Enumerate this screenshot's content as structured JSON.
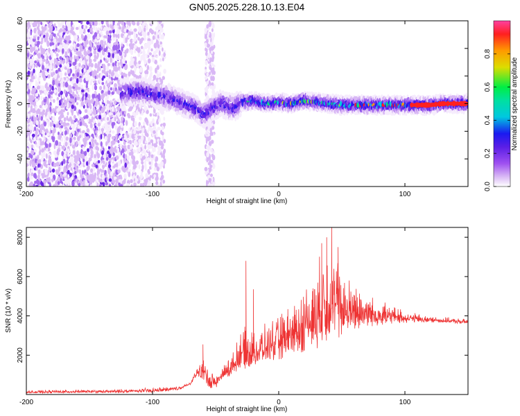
{
  "title": "GN05.2025.228.10.13.E04",
  "colors": {
    "snr_line": "#ee3333",
    "colormap": [
      "#ffffff",
      "#d9b8f5",
      "#9e4ff0",
      "#5a1ee6",
      "#1a1af0",
      "#00e0e0",
      "#00ee44",
      "#dddd00",
      "#ff9a00",
      "#ff2020",
      "#ff40a0"
    ]
  },
  "chart_data": [
    {
      "type": "heatmap",
      "title": "GN05.2025.228.10.13.E04",
      "xlabel": "Height of straight line (km)",
      "ylabel": "Frequency (Hz)",
      "xlim": [
        -200,
        150
      ],
      "ylim": [
        -60,
        60
      ],
      "xticks": [
        -200,
        -100,
        0,
        100
      ],
      "yticks": [
        -60,
        -40,
        -20,
        0,
        20,
        40,
        60
      ],
      "grid": false,
      "colorbar": {
        "label": "Normalized spectral amplitude",
        "range": [
          0,
          1
        ],
        "ticks": [
          0.0,
          0.2,
          0.4,
          0.6,
          0.8
        ]
      },
      "ridge": {
        "x": [
          -125,
          -110,
          -100,
          -90,
          -80,
          -70,
          -65,
          -60,
          -55,
          -50,
          -45,
          -40,
          -35,
          -30,
          -20,
          -10,
          0,
          10,
          20,
          30,
          40,
          50,
          60,
          70,
          80,
          90,
          100,
          110,
          120,
          130,
          140,
          150
        ],
        "frequency": [
          8,
          9,
          7,
          5,
          2,
          -2,
          -4,
          -8,
          -5,
          -2,
          0,
          -2,
          -3,
          1,
          2,
          0,
          1,
          0,
          2,
          1,
          0,
          -1,
          -1,
          -1,
          -1,
          -1,
          -1,
          -1,
          -1,
          0,
          0,
          0
        ]
      }
    },
    {
      "type": "line",
      "xlabel": "Height of straight line (km)",
      "ylabel": "SNR (10 * v/v)",
      "xlim": [
        -200,
        150
      ],
      "ylim": [
        0,
        8500
      ],
      "xticks": [
        -200,
        -100,
        0,
        100
      ],
      "yticks": [
        2000,
        4000,
        6000,
        8000
      ],
      "grid": false,
      "envelope": {
        "x": [
          -200,
          -180,
          -160,
          -140,
          -120,
          -100,
          -90,
          -80,
          -70,
          -65,
          -60,
          -55,
          -50,
          -45,
          -40,
          -35,
          -30,
          -20,
          -10,
          0,
          10,
          20,
          30,
          40,
          50,
          60,
          70,
          80,
          90,
          100,
          110,
          120,
          130,
          140,
          150
        ],
        "low": [
          60,
          60,
          80,
          80,
          80,
          100,
          150,
          200,
          500,
          900,
          700,
          200,
          300,
          700,
          800,
          1100,
          1200,
          1400,
          1600,
          1700,
          1800,
          2000,
          2300,
          2600,
          2900,
          3200,
          3400,
          3500,
          3600,
          3600,
          3650,
          3650,
          3650,
          3600,
          3600
        ],
        "high": [
          200,
          250,
          250,
          250,
          300,
          350,
          400,
          450,
          600,
          1400,
          1900,
          1500,
          1000,
          1400,
          2000,
          2300,
          3600,
          3300,
          3700,
          4200,
          4900,
          5800,
          6800,
          8400,
          6600,
          5900,
          5300,
          4800,
          4600,
          4300,
          4150,
          4000,
          3950,
          3900,
          3850
        ]
      },
      "spikes": [
        {
          "x": -60,
          "y": 2550
        },
        {
          "x": -26,
          "y": 6800
        },
        {
          "x": -20,
          "y": 5350
        },
        {
          "x": 34,
          "y": 7700
        },
        {
          "x": 38,
          "y": 8000
        },
        {
          "x": 42,
          "y": 8500
        },
        {
          "x": 47,
          "y": 7500
        }
      ]
    }
  ]
}
